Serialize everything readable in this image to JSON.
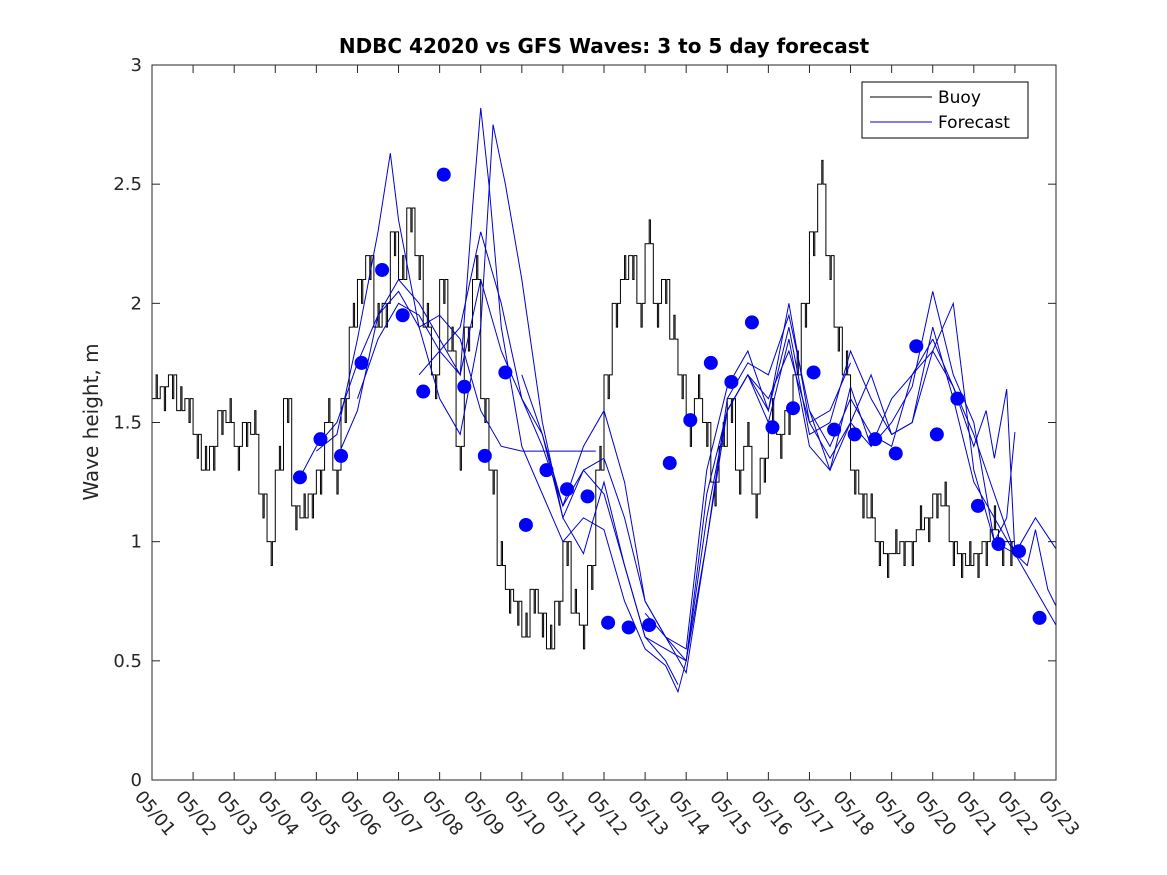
{
  "chart_data": {
    "type": "line",
    "title": "NDBC 42020 vs GFS Waves: 3 to 5 day forecast",
    "ylabel": "Wave height, m",
    "xlabel": "",
    "ylim": [
      0,
      3
    ],
    "xlim": [
      0,
      22
    ],
    "x_ticks": [
      "05/01",
      "05/02",
      "05/03",
      "05/04",
      "05/05",
      "05/06",
      "05/07",
      "05/08",
      "05/09",
      "05/10",
      "05/11",
      "05/12",
      "05/13",
      "05/14",
      "05/15",
      "05/16",
      "05/17",
      "05/18",
      "05/19",
      "05/20",
      "05/21",
      "05/22",
      "05/23"
    ],
    "y_ticks": [
      "0",
      "0.5",
      "1",
      "1.5",
      "2",
      "2.5",
      "3"
    ],
    "legend": {
      "position": "top-right",
      "entries": [
        "Buoy",
        "Forecast"
      ]
    },
    "colors": {
      "buoy": "#000000",
      "forecast": "#0000cd",
      "marker": "#0000ff"
    },
    "series": [
      {
        "name": "Buoy",
        "style": "step",
        "x": [
          0.0,
          0.2,
          0.4,
          0.6,
          0.8,
          1.0,
          1.2,
          1.4,
          1.6,
          1.8,
          2.0,
          2.2,
          2.4,
          2.6,
          2.8,
          3.0,
          3.2,
          3.4,
          3.6,
          3.8,
          4.0,
          4.2,
          4.4,
          4.6,
          4.8,
          5.0,
          5.2,
          5.4,
          5.6,
          5.8,
          6.0,
          6.2,
          6.4,
          6.6,
          6.8,
          7.0,
          7.2,
          7.4,
          7.6,
          7.8,
          8.0,
          8.2,
          8.4,
          8.6,
          8.8,
          9.0,
          9.2,
          9.4,
          9.6,
          9.8,
          10.0,
          10.2,
          10.4,
          10.6,
          10.8,
          11.0,
          11.2,
          11.4,
          11.6,
          11.8,
          12.0,
          12.2,
          12.4,
          12.6,
          12.8,
          13.0,
          13.2,
          13.4,
          13.6,
          13.8,
          14.0,
          14.2,
          14.4,
          14.6,
          14.8,
          15.0,
          15.2,
          15.4,
          15.6,
          15.8,
          16.0,
          16.2,
          16.4,
          16.6,
          16.8,
          17.0,
          17.2,
          17.4,
          17.6,
          17.8,
          18.0,
          18.2,
          18.4,
          18.6,
          18.8,
          19.0,
          19.2,
          19.4,
          19.6,
          19.8,
          20.0,
          20.2,
          20.4,
          20.6,
          20.8,
          21.0
        ],
        "values": [
          1.6,
          1.65,
          1.7,
          1.55,
          1.6,
          1.45,
          1.3,
          1.4,
          1.55,
          1.5,
          1.4,
          1.5,
          1.45,
          1.2,
          1.0,
          1.3,
          1.6,
          1.15,
          1.1,
          1.2,
          1.3,
          1.5,
          1.3,
          1.6,
          1.9,
          2.1,
          2.2,
          1.9,
          2.0,
          2.3,
          2.1,
          2.4,
          2.2,
          1.9,
          1.7,
          2.1,
          1.8,
          1.4,
          1.9,
          2.1,
          1.6,
          1.3,
          0.9,
          0.8,
          0.75,
          0.6,
          0.8,
          0.7,
          0.55,
          0.75,
          1.0,
          0.7,
          0.65,
          0.9,
          1.3,
          1.7,
          2.0,
          2.1,
          2.2,
          2.0,
          2.25,
          2.0,
          2.1,
          1.85,
          1.7,
          1.5,
          1.6,
          1.5,
          1.25,
          1.4,
          1.6,
          1.3,
          1.4,
          1.2,
          1.35,
          1.5,
          1.45,
          1.55,
          1.7,
          2.0,
          2.3,
          2.5,
          2.2,
          1.9,
          1.7,
          1.3,
          1.2,
          1.1,
          1.0,
          0.95,
          0.95,
          1.0,
          1.0,
          1.05,
          1.1,
          1.2,
          1.15,
          1.0,
          0.95,
          0.9,
          0.95,
          1.0,
          1.05,
          1.0,
          1.0,
          1.0
        ]
      },
      {
        "name": "Forecast",
        "runs": [
          {
            "x": [
              3.6,
              4.0,
              4.5,
              5.0,
              5.5,
              6.0,
              6.5,
              7.0,
              7.5,
              8.0,
              8.5,
              9.0,
              9.5,
              10.0,
              10.5,
              10.8
            ],
            "values": [
              1.27,
              1.4,
              1.5,
              1.75,
              1.95,
              2.05,
              1.9,
              1.95,
              1.85,
              1.55,
              1.4,
              1.38,
              1.38,
              1.38,
              1.38,
              1.38
            ]
          },
          {
            "x": [
              4.0,
              4.5,
              5.0,
              5.5,
              5.8,
              6.0,
              6.5,
              7.0,
              7.5,
              8.0,
              8.3,
              8.6,
              9.0,
              9.5,
              10.0,
              10.5,
              11.0,
              11.5,
              12.0,
              12.5,
              12.8
            ],
            "values": [
              1.38,
              1.45,
              1.85,
              2.3,
              2.63,
              2.35,
              1.9,
              1.6,
              1.45,
              1.9,
              2.75,
              2.5,
              2.1,
              1.5,
              1.1,
              1.3,
              1.2,
              0.9,
              0.6,
              0.5,
              0.4
            ]
          },
          {
            "x": [
              4.5,
              5.0,
              5.5,
              6.0,
              6.5,
              7.0,
              7.5,
              7.8,
              8.0,
              8.2,
              8.5,
              9.0,
              9.5,
              10.0,
              10.5,
              11.0,
              11.5,
              12.0,
              12.5,
              12.8,
              13.0,
              13.5,
              14.0,
              14.5,
              15.0,
              15.5,
              16.0,
              16.5,
              17.0
            ],
            "values": [
              1.35,
              1.55,
              1.95,
              2.1,
              2.0,
              1.85,
              1.7,
              2.4,
              2.82,
              2.5,
              1.9,
              1.4,
              1.2,
              1.0,
              1.1,
              1.05,
              0.75,
              0.55,
              0.48,
              0.37,
              0.5,
              1.1,
              1.55,
              1.7,
              1.6,
              1.8,
              1.5,
              1.55,
              1.75
            ]
          },
          {
            "x": [
              5.0,
              5.5,
              6.0,
              6.5,
              7.0,
              7.5,
              8.0,
              8.5,
              9.0,
              9.5,
              10.0,
              10.5,
              11.0,
              11.5,
              12.0,
              12.5,
              13.0,
              13.5,
              14.0,
              14.5,
              15.0,
              15.5,
              16.0,
              16.5,
              17.0,
              17.5,
              18.0,
              18.5,
              19.0
            ],
            "values": [
              1.6,
              1.85,
              2.0,
              1.95,
              1.8,
              1.7,
              2.1,
              1.8,
              1.6,
              1.45,
              1.1,
              0.95,
              1.25,
              0.9,
              0.6,
              0.55,
              0.5,
              1.0,
              1.6,
              1.75,
              1.7,
              1.95,
              1.55,
              1.4,
              1.6,
              1.45,
              1.4,
              1.7,
              1.85
            ]
          },
          {
            "x": [
              6.5,
              7.0,
              7.5,
              8.0,
              8.5,
              9.0,
              9.5,
              10.0,
              10.5,
              11.0,
              11.5,
              12.0,
              12.5,
              13.0,
              13.5,
              14.0,
              14.5,
              15.0,
              15.5,
              16.0,
              16.5,
              17.0,
              17.5,
              18.0,
              18.5,
              19.0,
              19.5,
              20.0,
              20.5,
              21.0
            ],
            "values": [
              1.7,
              1.8,
              1.9,
              2.3,
              2.0,
              1.6,
              1.4,
              1.15,
              1.3,
              1.35,
              1.1,
              0.75,
              0.6,
              0.5,
              1.2,
              1.55,
              1.7,
              1.55,
              1.9,
              1.45,
              1.5,
              1.8,
              1.6,
              1.45,
              1.5,
              1.9,
              1.6,
              1.25,
              1.1,
              0.95
            ]
          },
          {
            "x": [
              9.0,
              9.5,
              10.0,
              10.5,
              11.0,
              11.5,
              12.0,
              12.5,
              13.0,
              13.5,
              14.0,
              14.5,
              15.0,
              15.5,
              16.0,
              16.5,
              17.0,
              17.5,
              18.0,
              18.5,
              19.0,
              19.5,
              20.0,
              20.5,
              21.0,
              21.5,
              22.0
            ],
            "values": [
              1.7,
              1.45,
              1.15,
              1.4,
              1.55,
              1.25,
              0.75,
              0.6,
              0.55,
              1.3,
              1.65,
              1.8,
              1.55,
              2.0,
              1.5,
              1.35,
              1.5,
              1.4,
              1.6,
              1.7,
              1.8,
              2.0,
              1.3,
              1.0,
              0.95,
              0.8,
              0.65
            ]
          },
          {
            "x": [
              12.0,
              12.5,
              13.0,
              13.5,
              14.0,
              14.5,
              15.0,
              15.5,
              16.0,
              16.5,
              17.0,
              17.5,
              18.0,
              18.5,
              19.0,
              19.5,
              20.0,
              20.5,
              20.8,
              21.0
            ],
            "values": [
              0.7,
              0.6,
              0.45,
              1.0,
              1.55,
              1.7,
              1.5,
              1.85,
              1.4,
              1.3,
              1.65,
              1.4,
              1.5,
              1.65,
              2.05,
              1.7,
              1.5,
              1.0,
              1.1,
              1.46
            ]
          },
          {
            "x": [
              16.0,
              16.5,
              17.0,
              17.5,
              18.0,
              18.5,
              19.0,
              19.5,
              20.0,
              20.5,
              21.0,
              21.5,
              22.0
            ],
            "values": [
              1.55,
              1.3,
              1.5,
              1.7,
              1.45,
              1.5,
              1.8,
              1.65,
              1.45,
              1.2,
              0.95,
              1.1,
              0.97
            ]
          },
          {
            "x": [
              19.0,
              19.5,
              20.0,
              20.3,
              20.5,
              20.8,
              21.0,
              21.3,
              21.5,
              21.8,
              22.0
            ],
            "values": [
              1.85,
              1.65,
              1.4,
              1.55,
              1.35,
              1.64,
              0.95,
              0.9,
              1.05,
              0.8,
              0.73
            ]
          }
        ],
        "markers": {
          "x": [
            3.6,
            4.1,
            4.6,
            5.1,
            5.6,
            6.1,
            6.6,
            7.1,
            7.6,
            8.1,
            8.6,
            9.1,
            9.6,
            10.1,
            10.6,
            11.1,
            11.6,
            12.1,
            12.6,
            13.1,
            13.6,
            14.1,
            14.6,
            15.1,
            15.6,
            16.1,
            16.6,
            17.1,
            17.6,
            18.1,
            18.6,
            19.1,
            19.6,
            20.1,
            20.6,
            21.1
          ],
          "values": [
            1.27,
            1.43,
            1.36,
            1.75,
            2.14,
            1.95,
            1.63,
            2.54,
            1.65,
            1.36,
            1.71,
            1.07,
            1.3,
            1.22,
            1.19,
            0.66,
            0.64,
            0.65,
            1.33,
            1.51,
            1.75,
            1.67,
            1.92,
            1.48,
            1.56,
            1.71,
            1.47,
            1.45,
            1.43,
            1.37,
            1.82,
            1.45,
            1.6,
            1.15,
            0.99,
            0.96
          ]
        },
        "extra_markers": {
          "x": [
            21.6
          ],
          "values": [
            0.68
          ]
        }
      }
    ]
  }
}
